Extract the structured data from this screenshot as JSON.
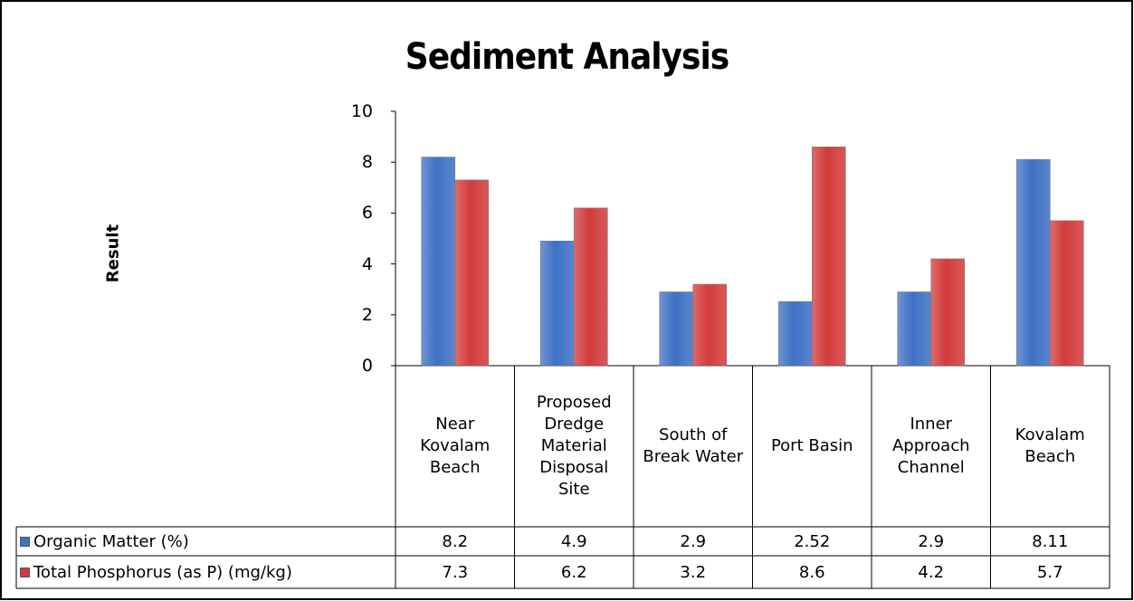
{
  "chart_data": {
    "type": "bar",
    "title": "Sediment Analysis",
    "y_label": "Result",
    "categories": [
      "Near Kovalam Beach",
      "Proposed Dredge Material Disposal Site",
      "South of Break Water",
      "Port Basin",
      "Inner Approach Channel",
      "Kovalam Beach"
    ],
    "series": [
      {
        "name": "Organic Matter (%)",
        "color": "#3e70c4",
        "values": [
          8.2,
          4.9,
          2.9,
          2.52,
          2.9,
          8.11
        ]
      },
      {
        "name": "Total Phosphorus (as P) (mg/kg)",
        "color": "#d23b3b",
        "values": [
          7.3,
          6.2,
          3.2,
          8.6,
          4.2,
          5.7
        ]
      }
    ],
    "ylim": [
      0,
      10
    ],
    "yticks": [
      0,
      2,
      4,
      6,
      8,
      10
    ],
    "grid": false,
    "data_table": true
  }
}
